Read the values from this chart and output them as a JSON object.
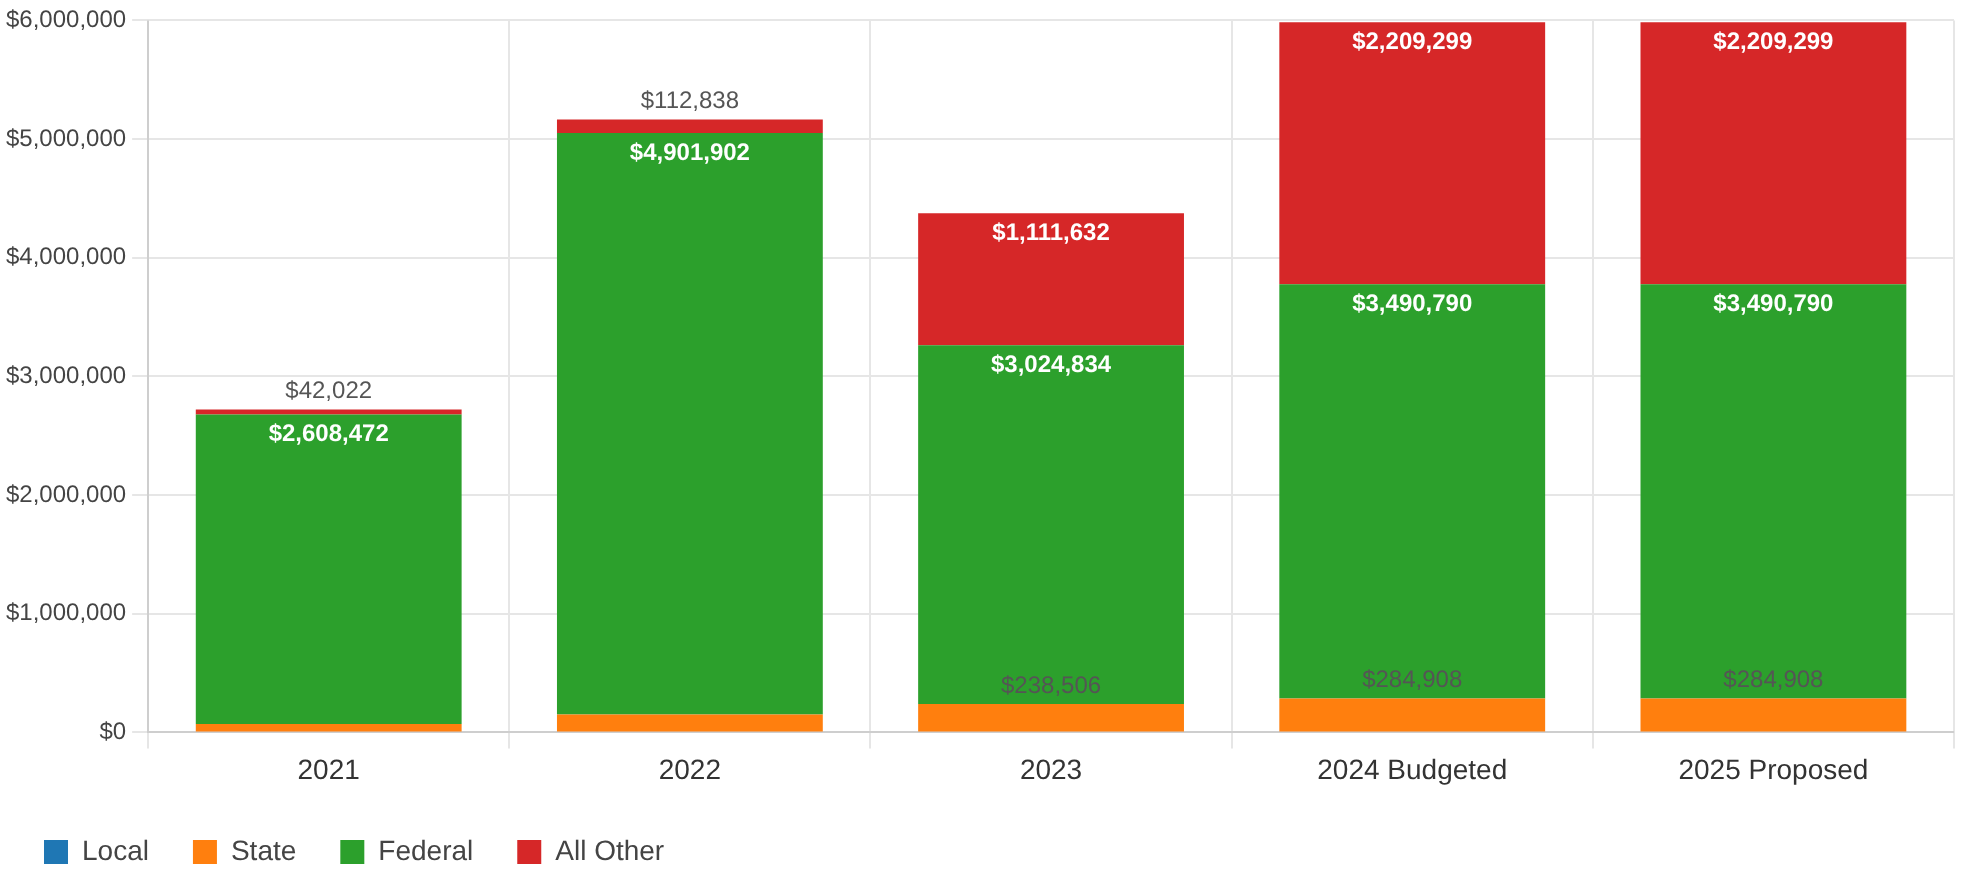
{
  "chart_data": {
    "type": "bar",
    "stacked": true,
    "categories": [
      "2021",
      "2022",
      "2023",
      "2024 Budgeted",
      "2025 Proposed"
    ],
    "series": [
      {
        "name": "Local",
        "color": "#1f77b4",
        "values": [
          0,
          0,
          0,
          0,
          0
        ]
      },
      {
        "name": "State",
        "color": "#ff7f0e",
        "values": [
          70000,
          150000,
          238506,
          284908,
          284908
        ],
        "value_labels": [
          null,
          null,
          "$238,506",
          "$284,908",
          "$284,908"
        ]
      },
      {
        "name": "Federal",
        "color": "#2ca02c",
        "values": [
          2608472,
          4901902,
          3024834,
          3490790,
          3490790
        ],
        "value_labels": [
          "$2,608,472",
          "$4,901,902",
          "$3,024,834",
          "$3,490,790",
          "$3,490,790"
        ]
      },
      {
        "name": "All Other",
        "color": "#d62728",
        "values": [
          42022,
          112838,
          1111632,
          2209299,
          2209299
        ],
        "value_labels": [
          "$42,022",
          "$112,838",
          "$1,111,632",
          "$2,209,299",
          "$2,209,299"
        ]
      }
    ],
    "ylim": [
      0,
      6000000
    ],
    "yticks": [
      {
        "value": 0,
        "label": "$0"
      },
      {
        "value": 1000000,
        "label": "$1,000,000"
      },
      {
        "value": 2000000,
        "label": "$2,000,000"
      },
      {
        "value": 3000000,
        "label": "$3,000,000"
      },
      {
        "value": 4000000,
        "label": "$4,000,000"
      },
      {
        "value": 5000000,
        "label": "$5,000,000"
      },
      {
        "value": 6000000,
        "label": "$6,000,000"
      }
    ],
    "grid": true,
    "legend": "bottom left"
  }
}
